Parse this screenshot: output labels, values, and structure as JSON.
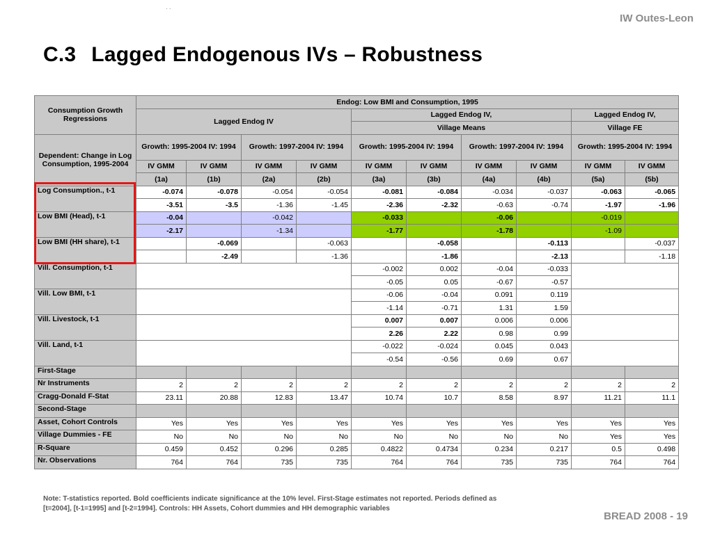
{
  "header": {
    "author": "IW Outes-Leon",
    "dots": "· ·"
  },
  "title": {
    "number": "C.3",
    "text": "Lagged Endogenous IVs – Robustness"
  },
  "table": {
    "corner_top": "Consumption Growth Regressions",
    "corner_bottom": "Dependent: Change in Log Consumption, 1995-2004",
    "endog": "Endog: Low BMI and Consumption, 1995",
    "group1": "Lagged Endog IV",
    "group2_line1": "Lagged Endog IV,",
    "group2_line2": "Village Means",
    "group3_line1": "Lagged Endog IV,",
    "group3_line2": "Village FE",
    "growth": [
      "Growth: 1995-2004  IV: 1994",
      "Growth: 1997-2004  IV: 1994",
      "Growth: 1995-2004  IV: 1994",
      "Growth: 1997-2004  IV: 1994",
      "Growth: 1995-2004  IV: 1994"
    ],
    "methods": [
      "IV GMM",
      "IV GMM",
      "IV GMM",
      "IV GMM",
      "IV GMM",
      "IV GMM",
      "IV GMM",
      "IV GMM",
      "IV GMM",
      "IV GMM"
    ],
    "cols": [
      "(1a)",
      "(1b)",
      "(2a)",
      "(2b)",
      "(3a)",
      "(3b)",
      "(4a)",
      "(4b)",
      "(5a)",
      "(5b)"
    ],
    "rows": {
      "logcons": {
        "label": "Log Consumption., t-1",
        "coef": [
          "-0.074",
          "-0.078",
          "-0.054",
          "-0.054",
          "-0.081",
          "-0.084",
          "-0.034",
          "-0.037",
          "-0.063",
          "-0.065"
        ],
        "t": [
          "-3.51",
          "-3.5",
          "-1.36",
          "-1.45",
          "-2.36",
          "-2.32",
          "-0.63",
          "-0.74",
          "-1.97",
          "-1.96"
        ]
      },
      "lowbmi_head": {
        "label": "Low BMI (Head), t-1",
        "coef": [
          "-0.04",
          "",
          "-0.042",
          "",
          "-0.033",
          "",
          "-0.06",
          "",
          "-0.019",
          ""
        ],
        "t": [
          "-2.17",
          "",
          "-1.34",
          "",
          "-1.77",
          "",
          "-1.78",
          "",
          "-1.09",
          ""
        ]
      },
      "lowbmi_hh": {
        "label": "Low BMI (HH share), t-1",
        "coef": [
          "",
          "-0.069",
          "",
          "-0.063",
          "",
          "-0.058",
          "",
          "-0.113",
          "",
          "-0.037"
        ],
        "t": [
          "",
          "-2.49",
          "",
          "-1.36",
          "",
          "-1.86",
          "",
          "-2.13",
          "",
          "-1.18"
        ]
      },
      "vill_cons": {
        "label": "Vill. Consumption, t-1",
        "coef": [
          "-0.002",
          "0.002",
          "-0.04",
          "-0.033"
        ],
        "t": [
          "-0.05",
          "0.05",
          "-0.67",
          "-0.57"
        ]
      },
      "vill_bmi": {
        "label": "Vill. Low BMI, t-1",
        "coef": [
          "-0.06",
          "-0.04",
          "0.091",
          "0.119"
        ],
        "t": [
          "-1.14",
          "-0.71",
          "1.31",
          "1.59"
        ]
      },
      "vill_live": {
        "label": "Vill. Livestock, t-1",
        "coef": [
          "0.007",
          "0.007",
          "0.006",
          "0.006"
        ],
        "t": [
          "2.26",
          "2.22",
          "0.98",
          "0.99"
        ]
      },
      "vill_land": {
        "label": "Vill. Land, t-1",
        "coef": [
          "-0.022",
          "-0.024",
          "0.045",
          "0.043"
        ],
        "t": [
          "-0.54",
          "-0.56",
          "0.69",
          "0.67"
        ]
      }
    },
    "first_stage": "First-Stage",
    "nr_instr": {
      "label": "Nr Instruments",
      "values": [
        "2",
        "2",
        "2",
        "2",
        "2",
        "2",
        "2",
        "2",
        "2",
        "2"
      ]
    },
    "cragg": {
      "label": "Cragg-Donald F-Stat",
      "values": [
        "23.11",
        "20.88",
        "12.83",
        "13.47",
        "10.74",
        "10.7",
        "8.58",
        "8.97",
        "11.21",
        "11.1"
      ]
    },
    "second_stage": "Second-Stage",
    "asset": {
      "label": "Asset, Cohort Controls",
      "values": [
        "Yes",
        "Yes",
        "Yes",
        "Yes",
        "Yes",
        "Yes",
        "Yes",
        "Yes",
        "Yes",
        "Yes"
      ]
    },
    "vdum": {
      "label": "Village Dummies - FE",
      "values": [
        "No",
        "No",
        "No",
        "No",
        "No",
        "No",
        "No",
        "No",
        "Yes",
        "Yes"
      ]
    },
    "rsq": {
      "label": "R-Square",
      "values": [
        "0.459",
        "0.452",
        "0.296",
        "0.285",
        "0.4822",
        "0.4734",
        "0.234",
        "0.217",
        "0.5",
        "0.498"
      ]
    },
    "nobs": {
      "label": "Nr. Observations",
      "values": [
        "764",
        "764",
        "735",
        "735",
        "764",
        "764",
        "735",
        "735",
        "764",
        "764"
      ]
    }
  },
  "note": "Note:  T-statistics reported.  Bold coefficients indicate significance at the 10% level.  First-Stage estimates not reported. Periods defined as [t=2004], [t-1=1995] and [t-2=1994]. Controls: HH Assets, Cohort dummies and HH demographic variables",
  "footer": "BREAD 2008   -   19"
}
